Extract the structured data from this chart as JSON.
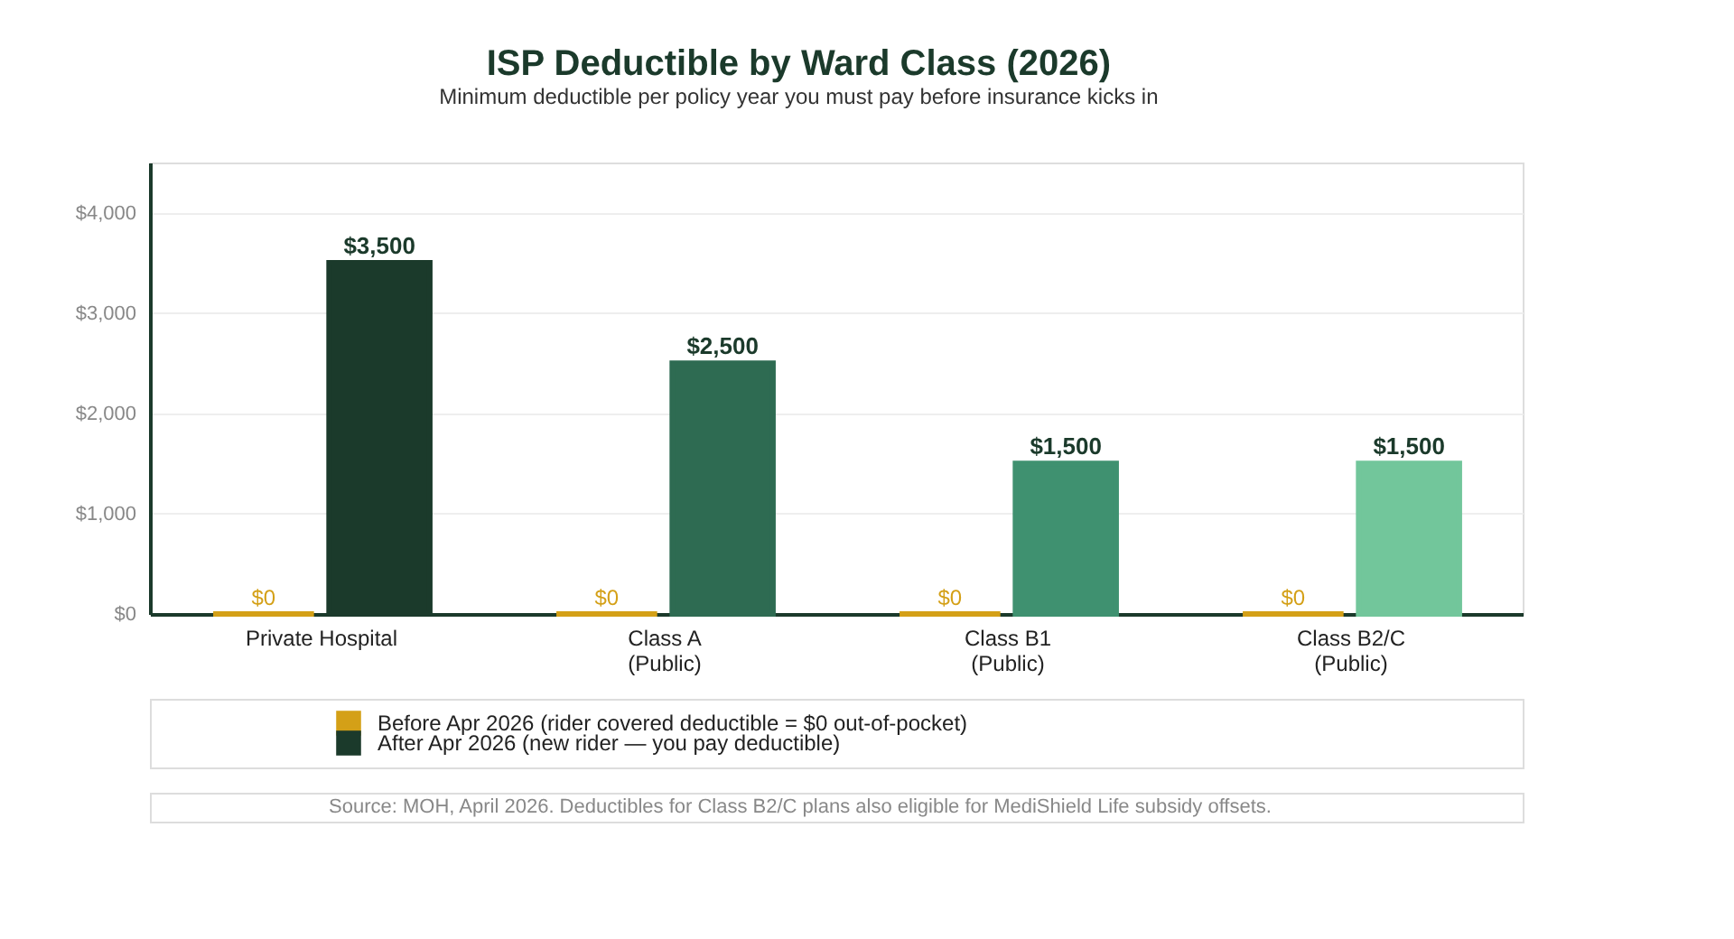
{
  "chart_data": {
    "type": "bar",
    "title": "ISP Deductible by Ward Class (2026)",
    "subtitle": "Minimum deductible per policy year you must pay before insurance kicks in",
    "categories": [
      "Private Hospital",
      "Class A\n(Public)",
      "Class B1\n(Public)",
      "Class B2/C\n(Public)"
    ],
    "series": [
      {
        "name": "Before Apr 2026 (rider covered deductible = $0 out-of-pocket)",
        "color": "#d4a017",
        "values": [
          0,
          0,
          0,
          0
        ],
        "value_labels": [
          "$0",
          "$0",
          "$0",
          "$0"
        ]
      },
      {
        "name": "After Apr 2026 (new rider — you pay deductible)",
        "color": "#1b3a2b",
        "colors": [
          "#1b3a2b",
          "#2e6b52",
          "#3f9170",
          "#72c69b"
        ],
        "values": [
          3500,
          2500,
          1500,
          1500
        ],
        "value_labels": [
          "$3,500",
          "$2,500",
          "$1,500",
          "$1,500"
        ]
      }
    ],
    "ylim": [
      0,
      4500
    ],
    "yticks": [
      {
        "value": 0,
        "label": "$0"
      },
      {
        "value": 1000,
        "label": "$1,000"
      },
      {
        "value": 2000,
        "label": "$2,000"
      },
      {
        "value": 3000,
        "label": "$3,000"
      },
      {
        "value": 4000,
        "label": "$4,000"
      }
    ],
    "grid": "y",
    "legend": "bottom",
    "annotations": [
      "Source: MOH, April 2026. Deductibles for Class B2/C plans also eligible for MediShield Life subsidy offsets."
    ]
  }
}
